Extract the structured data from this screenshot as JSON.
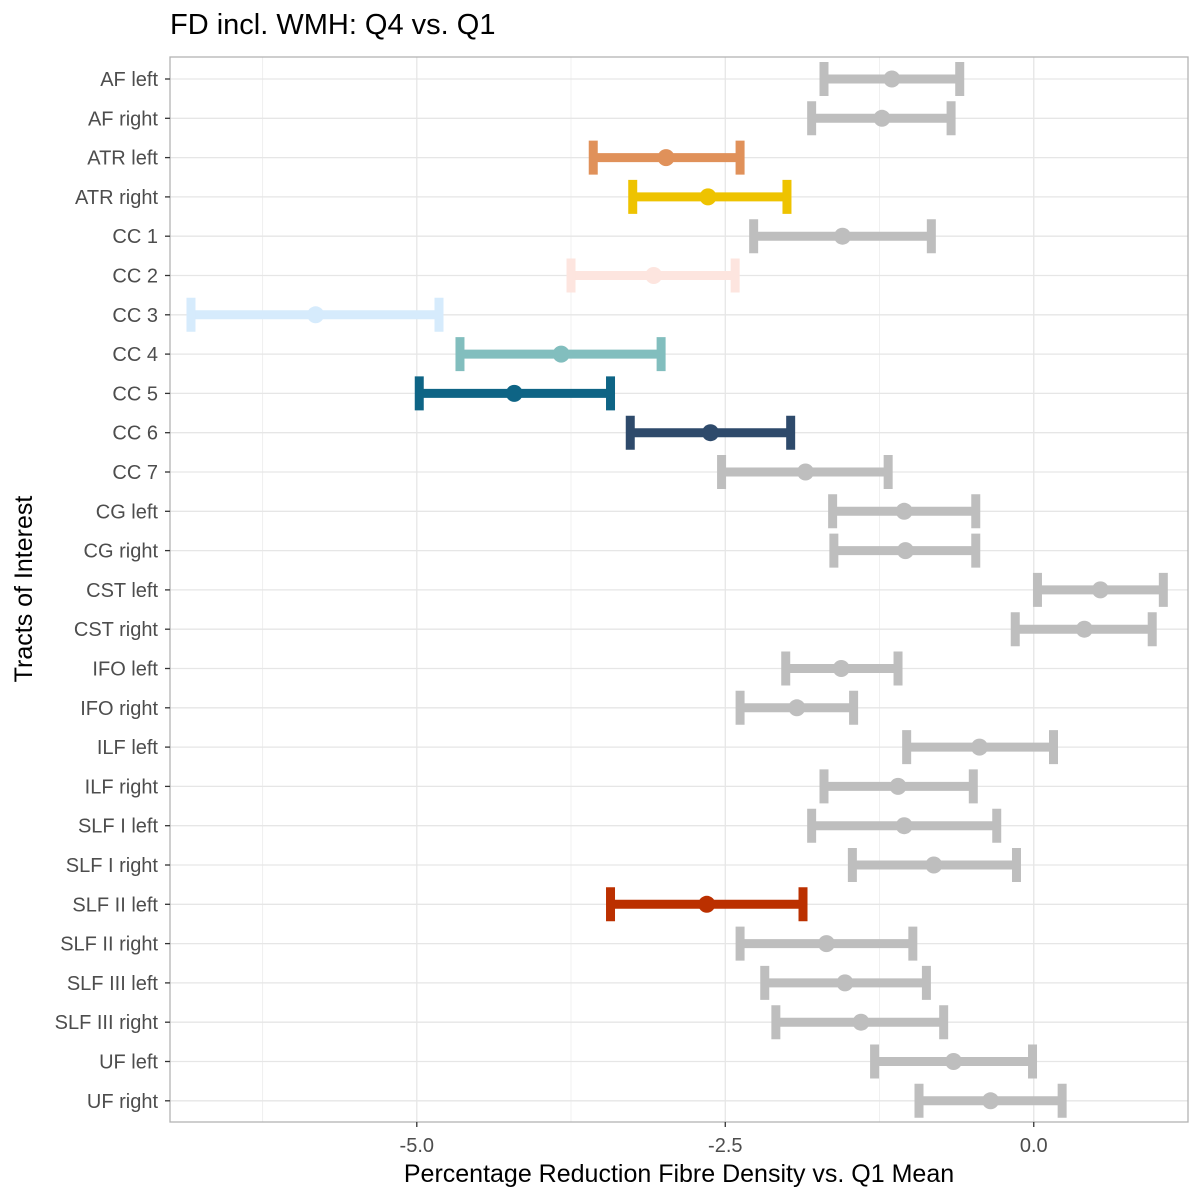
{
  "chart_data": {
    "type": "errorbar",
    "title": "FD incl. WMH: Q4 vs. Q1",
    "xlabel": "Percentage Reduction Fibre Density vs. Q1 Mean",
    "ylabel": "Tracts of Interest",
    "xlim": [
      -7.0,
      1.25
    ],
    "x_ticks": [
      -5.0,
      -2.5,
      0.0
    ],
    "x_tick_labels": [
      "-5.0",
      "-2.5",
      "0.0"
    ],
    "grid": true,
    "legend": "none",
    "points": [
      {
        "category": "AF left",
        "estimate": -1.15,
        "lower": -1.7,
        "upper": -0.6,
        "color": "#BEBEBE"
      },
      {
        "category": "AF right",
        "estimate": -1.23,
        "lower": -1.8,
        "upper": -0.67,
        "color": "#BEBEBE"
      },
      {
        "category": "ATR left",
        "estimate": -2.98,
        "lower": -3.57,
        "upper": -2.38,
        "color": "#E0915A"
      },
      {
        "category": "ATR right",
        "estimate": -2.64,
        "lower": -3.25,
        "upper": -2.0,
        "color": "#EEC300"
      },
      {
        "category": "CC 1",
        "estimate": -1.55,
        "lower": -2.27,
        "upper": -0.83,
        "color": "#BEBEBE"
      },
      {
        "category": "CC 2",
        "estimate": -3.08,
        "lower": -3.75,
        "upper": -2.42,
        "color": "#FDE5DF"
      },
      {
        "category": "CC 3",
        "estimate": -5.82,
        "lower": -6.83,
        "upper": -4.82,
        "color": "#D6EBFC"
      },
      {
        "category": "CC 4",
        "estimate": -3.83,
        "lower": -4.65,
        "upper": -3.02,
        "color": "#82BEBE"
      },
      {
        "category": "CC 5",
        "estimate": -4.21,
        "lower": -4.98,
        "upper": -3.43,
        "color": "#0E6485"
      },
      {
        "category": "CC 6",
        "estimate": -2.62,
        "lower": -3.27,
        "upper": -1.97,
        "color": "#2E4A6B"
      },
      {
        "category": "CC 7",
        "estimate": -1.85,
        "lower": -2.53,
        "upper": -1.18,
        "color": "#BEBEBE"
      },
      {
        "category": "CG left",
        "estimate": -1.05,
        "lower": -1.63,
        "upper": -0.47,
        "color": "#BEBEBE"
      },
      {
        "category": "CG right",
        "estimate": -1.04,
        "lower": -1.62,
        "upper": -0.47,
        "color": "#BEBEBE"
      },
      {
        "category": "CST left",
        "estimate": 0.54,
        "lower": 0.03,
        "upper": 1.05,
        "color": "#BEBEBE"
      },
      {
        "category": "CST right",
        "estimate": 0.41,
        "lower": -0.15,
        "upper": 0.96,
        "color": "#BEBEBE"
      },
      {
        "category": "IFO left",
        "estimate": -1.56,
        "lower": -2.01,
        "upper": -1.1,
        "color": "#BEBEBE"
      },
      {
        "category": "IFO right",
        "estimate": -1.92,
        "lower": -2.38,
        "upper": -1.46,
        "color": "#BEBEBE"
      },
      {
        "category": "ILF left",
        "estimate": -0.44,
        "lower": -1.03,
        "upper": 0.16,
        "color": "#BEBEBE"
      },
      {
        "category": "ILF right",
        "estimate": -1.1,
        "lower": -1.7,
        "upper": -0.49,
        "color": "#BEBEBE"
      },
      {
        "category": "SLF I left",
        "estimate": -1.05,
        "lower": -1.8,
        "upper": -0.3,
        "color": "#BEBEBE"
      },
      {
        "category": "SLF I right",
        "estimate": -0.81,
        "lower": -1.47,
        "upper": -0.14,
        "color": "#BEBEBE"
      },
      {
        "category": "SLF II left",
        "estimate": -2.65,
        "lower": -3.43,
        "upper": -1.87,
        "color": "#BB3000"
      },
      {
        "category": "SLF II right",
        "estimate": -1.68,
        "lower": -2.38,
        "upper": -0.98,
        "color": "#BEBEBE"
      },
      {
        "category": "SLF III left",
        "estimate": -1.53,
        "lower": -2.18,
        "upper": -0.87,
        "color": "#BEBEBE"
      },
      {
        "category": "SLF III right",
        "estimate": -1.4,
        "lower": -2.09,
        "upper": -0.73,
        "color": "#BEBEBE"
      },
      {
        "category": "UF left",
        "estimate": -0.65,
        "lower": -1.29,
        "upper": -0.01,
        "color": "#BEBEBE"
      },
      {
        "category": "UF right",
        "estimate": -0.35,
        "lower": -0.93,
        "upper": 0.23,
        "color": "#BEBEBE"
      }
    ]
  }
}
